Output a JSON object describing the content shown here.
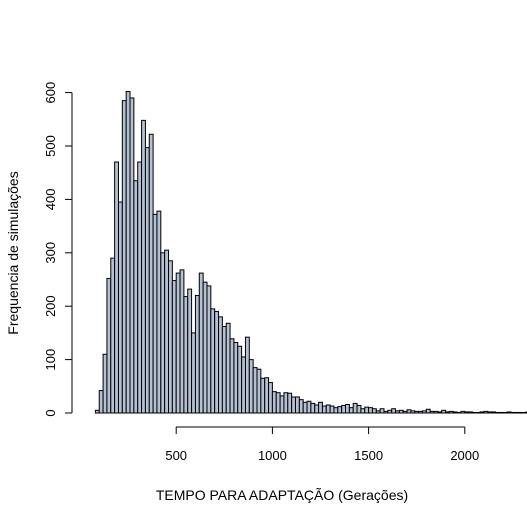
{
  "chart_data": {
    "type": "bar",
    "title": "",
    "xlabel": "TEMPO PARA ADAPTAÇÃO (Gerações)",
    "ylabel": "Frequencia de simulações",
    "xlim": [
      0,
      2050
    ],
    "ylim": [
      0,
      600
    ],
    "bin_start": 80,
    "bin_width": 20,
    "x_ticks": [
      500,
      1000,
      1500,
      2000
    ],
    "y_ticks": [
      0,
      100,
      200,
      300,
      400,
      500,
      600
    ],
    "grid": false,
    "legend": "none",
    "bar_color": "#b4c0d3",
    "values": [
      5,
      42,
      110,
      252,
      290,
      470,
      395,
      585,
      602,
      590,
      435,
      470,
      548,
      497,
      522,
      372,
      378,
      300,
      305,
      285,
      248,
      262,
      268,
      218,
      232,
      150,
      220,
      262,
      245,
      238,
      195,
      190,
      180,
      162,
      168,
      139,
      132,
      125,
      105,
      142,
      100,
      85,
      82,
      65,
      66,
      57,
      40,
      38,
      32,
      38,
      37,
      30,
      30,
      25,
      20,
      22,
      18,
      15,
      20,
      13,
      15,
      13,
      10,
      12,
      14,
      16,
      10,
      18,
      14,
      8,
      11,
      10,
      8,
      4,
      8,
      3,
      5,
      8,
      4,
      5,
      3,
      6,
      4,
      3,
      3,
      4,
      7,
      3,
      3,
      2,
      5,
      2,
      3,
      2,
      1,
      3,
      2,
      2,
      1,
      1,
      2,
      3,
      2,
      2,
      1,
      1,
      1,
      2,
      1,
      1,
      1,
      1,
      2,
      1,
      1,
      1,
      1,
      1,
      1,
      1,
      2,
      1,
      1,
      1,
      1,
      1,
      1,
      1,
      1,
      1,
      1,
      1,
      1,
      1,
      1,
      1,
      1,
      1,
      1,
      1,
      1,
      1,
      1,
      1,
      1,
      1,
      1,
      1,
      1,
      1,
      1,
      1,
      1,
      1,
      1,
      1,
      1,
      1,
      1,
      1,
      1,
      1,
      1,
      1,
      1,
      1,
      1,
      1,
      1,
      1,
      1,
      1,
      1,
      1,
      1,
      1,
      1,
      1,
      1,
      1,
      1,
      1,
      1,
      1,
      1,
      1,
      1,
      1,
      1,
      1,
      1,
      1,
      1,
      1,
      1,
      1,
      1,
      1,
      1,
      1,
      1,
      1
    ]
  }
}
